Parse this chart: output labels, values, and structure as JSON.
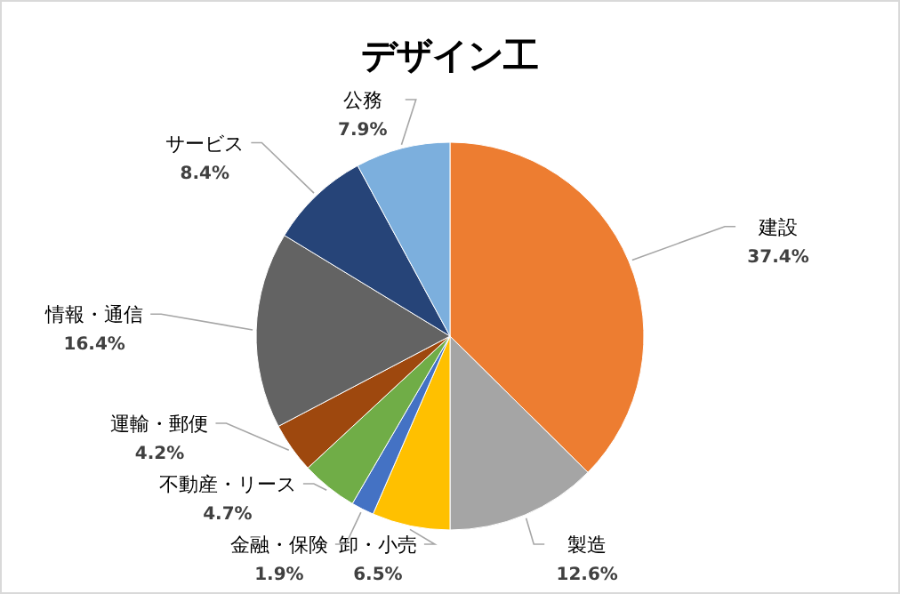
{
  "chart_data": {
    "type": "pie",
    "title": "デザイン工",
    "categories": [
      "建設",
      "製造",
      "卸・小売",
      "金融・保険",
      "不動産・リース",
      "運輸・郵便",
      "情報・通信",
      "サービス",
      "公務"
    ],
    "values": [
      37.4,
      12.6,
      6.5,
      1.9,
      4.7,
      4.2,
      16.4,
      8.4,
      7.9
    ],
    "colors": [
      "#ed7d31",
      "#a5a5a5",
      "#ffc000",
      "#4472c4",
      "#70ad47",
      "#9e480e",
      "#636363",
      "#264478",
      "#7cafdd"
    ],
    "data_labels": true,
    "value_labels": [
      "37.4%",
      "12.6%",
      "6.5%",
      "1.9%",
      "4.7%",
      "4.2%",
      "16.4%",
      "8.4%",
      "7.9%"
    ]
  }
}
